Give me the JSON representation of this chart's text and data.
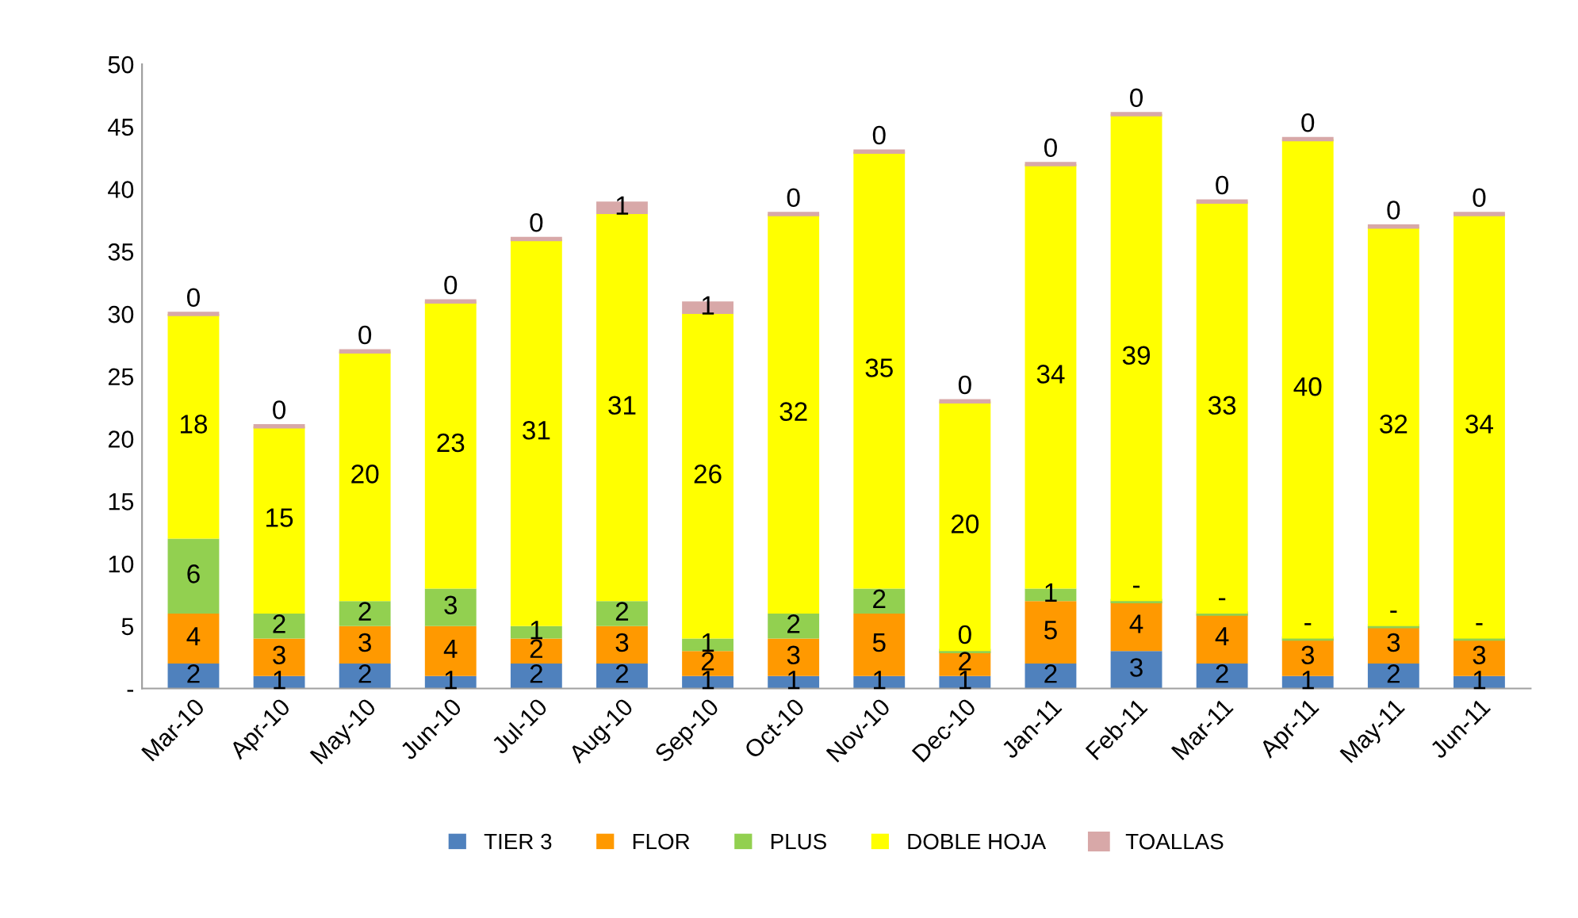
{
  "chart_data": {
    "type": "bar",
    "stacked": true,
    "categories": [
      "Mar-10",
      "Apr-10",
      "May-10",
      "Jun-10",
      "Jul-10",
      "Aug-10",
      "Sep-10",
      "Oct-10",
      "Nov-10",
      "Dec-10",
      "Jan-11",
      "Feb-11",
      "Mar-11",
      "Apr-11",
      "May-11",
      "Jun-11"
    ],
    "series": [
      {
        "name": "TIER 3",
        "color": "#4f81bd",
        "values": [
          2,
          1,
          2,
          1,
          2,
          2,
          1,
          1,
          1,
          1,
          2,
          3,
          2,
          1,
          2,
          1
        ],
        "value_labels": [
          "2",
          "1",
          "2",
          "1",
          "2",
          "2",
          "1",
          "1",
          "1",
          "1",
          "2",
          "3",
          "2",
          "1",
          "2",
          "1"
        ]
      },
      {
        "name": "FLOR",
        "color": "#ff9900",
        "values": [
          4,
          3,
          3,
          4,
          2,
          3,
          2,
          3,
          5,
          2,
          5,
          4,
          4,
          3,
          3,
          3
        ],
        "value_labels": [
          "4",
          "3",
          "3",
          "4",
          "2",
          "3",
          "2",
          "3",
          "5",
          "2",
          "5",
          "4",
          "4",
          "3",
          "3",
          "3"
        ]
      },
      {
        "name": "PLUS",
        "color": "#92d050",
        "values": [
          6,
          2,
          2,
          3,
          1,
          2,
          1,
          2,
          2,
          0,
          1,
          0,
          0,
          0,
          0,
          0
        ],
        "value_labels": [
          "6",
          "2",
          "2",
          "3",
          "1",
          "2",
          "1",
          "2",
          "2",
          "0",
          "1",
          "-",
          "-",
          "-",
          "-",
          "-"
        ]
      },
      {
        "name": "DOBLE HOJA",
        "color": "#ffff00",
        "values": [
          18,
          15,
          20,
          23,
          31,
          31,
          26,
          32,
          35,
          20,
          34,
          39,
          33,
          40,
          32,
          34
        ],
        "value_labels": [
          "18",
          "15",
          "20",
          "23",
          "31",
          "31",
          "26",
          "32",
          "35",
          "20",
          "34",
          "39",
          "33",
          "40",
          "32",
          "34"
        ]
      },
      {
        "name": "TOALLAS",
        "color": "#d8a8a8",
        "values": [
          0,
          0,
          0,
          0,
          0,
          1,
          1,
          0,
          0,
          0,
          0,
          0,
          0,
          0,
          0,
          0
        ],
        "value_labels": [
          "0",
          "0",
          "0",
          "0",
          "0",
          "1",
          "1",
          "0",
          "0",
          "0",
          "0",
          "0",
          "0",
          "0",
          "0",
          "0"
        ]
      }
    ],
    "ylim": [
      0,
      50
    ],
    "yticks": [
      {
        "value": 0,
        "label": "-"
      },
      5,
      10,
      15,
      20,
      25,
      30,
      35,
      40,
      45,
      50
    ],
    "grid": false,
    "legend": "bottom"
  }
}
